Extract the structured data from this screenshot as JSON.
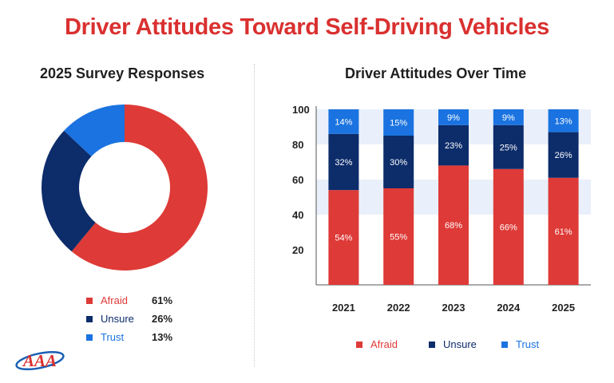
{
  "title": "Driver Attitudes Toward Self-Driving Vehicles",
  "colors": {
    "afraid": "#de3a37",
    "unsure": "#0c2c6a",
    "trust": "#1a73e0",
    "title": "#d9302f",
    "band": "#e9f0fb"
  },
  "logo": {
    "text": "AAA"
  },
  "chart_data": [
    {
      "type": "pie",
      "title": "2025 Survey Responses",
      "slices": [
        {
          "label": "Afraid",
          "value": 61,
          "display": "61%"
        },
        {
          "label": "Unsure",
          "value": 26,
          "display": "26%"
        },
        {
          "label": "Trust",
          "value": 13,
          "display": "13%"
        }
      ]
    },
    {
      "type": "bar",
      "stacked": true,
      "title": "Driver Attitudes Over Time",
      "categories": [
        "2021",
        "2022",
        "2023",
        "2024",
        "2025"
      ],
      "series": [
        {
          "name": "Afraid",
          "values": [
            54,
            55,
            68,
            66,
            61
          ]
        },
        {
          "name": "Unsure",
          "values": [
            32,
            30,
            23,
            25,
            26
          ]
        },
        {
          "name": "Trust",
          "values": [
            14,
            15,
            9,
            9,
            13
          ]
        }
      ],
      "yticks": [
        20,
        40,
        60,
        80,
        100
      ],
      "ylim": [
        0,
        100
      ],
      "legend": [
        "Afraid",
        "Unsure",
        "Trust"
      ]
    }
  ]
}
